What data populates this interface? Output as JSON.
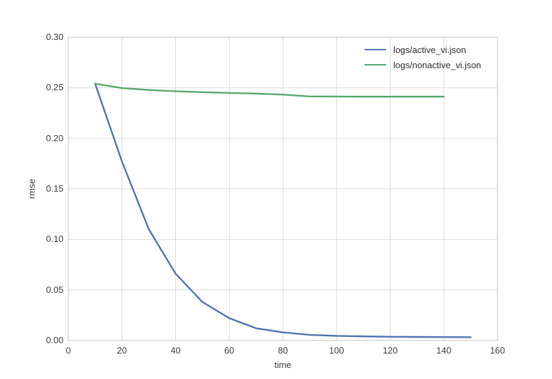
{
  "figure": {
    "background_color": "#ffffff",
    "grid_color": "#d9d9d9",
    "spine_color": "#cccccc",
    "text_color": "#3b3b3b"
  },
  "chart_data": {
    "type": "line",
    "title": "",
    "xlabel": "time",
    "ylabel": "rmse",
    "xlim": [
      0,
      160
    ],
    "ylim": [
      0,
      0.3
    ],
    "xticks": [
      0,
      20,
      40,
      60,
      80,
      100,
      120,
      140,
      160
    ],
    "xtick_labels": [
      "0",
      "20",
      "40",
      "60",
      "80",
      "100",
      "120",
      "140",
      "160"
    ],
    "yticks": [
      0.0,
      0.05,
      0.1,
      0.15,
      0.2,
      0.25,
      0.3
    ],
    "ytick_labels": [
      "0.00",
      "0.05",
      "0.10",
      "0.15",
      "0.20",
      "0.25",
      "0.30"
    ],
    "grid": true,
    "legend_position": "upper right",
    "series": [
      {
        "name": "logs/active_vi.json",
        "color": "#4C72B0",
        "x": [
          10,
          20,
          30,
          40,
          50,
          60,
          70,
          80,
          90,
          100,
          110,
          120,
          130,
          140,
          150
        ],
        "y": [
          0.254,
          0.177,
          0.11,
          0.066,
          0.038,
          0.022,
          0.012,
          0.008,
          0.0055,
          0.0045,
          0.004,
          0.0036,
          0.0034,
          0.0033,
          0.0032
        ]
      },
      {
        "name": "logs/nonactive_vi.json",
        "color": "#55A868",
        "x": [
          10,
          20,
          30,
          40,
          50,
          60,
          70,
          80,
          90,
          100,
          110,
          120,
          130,
          140
        ],
        "y": [
          0.254,
          0.2497,
          0.2478,
          0.2465,
          0.2456,
          0.2449,
          0.2442,
          0.2432,
          0.2414,
          0.2413,
          0.2412,
          0.2412,
          0.2412,
          0.2412
        ]
      }
    ]
  }
}
